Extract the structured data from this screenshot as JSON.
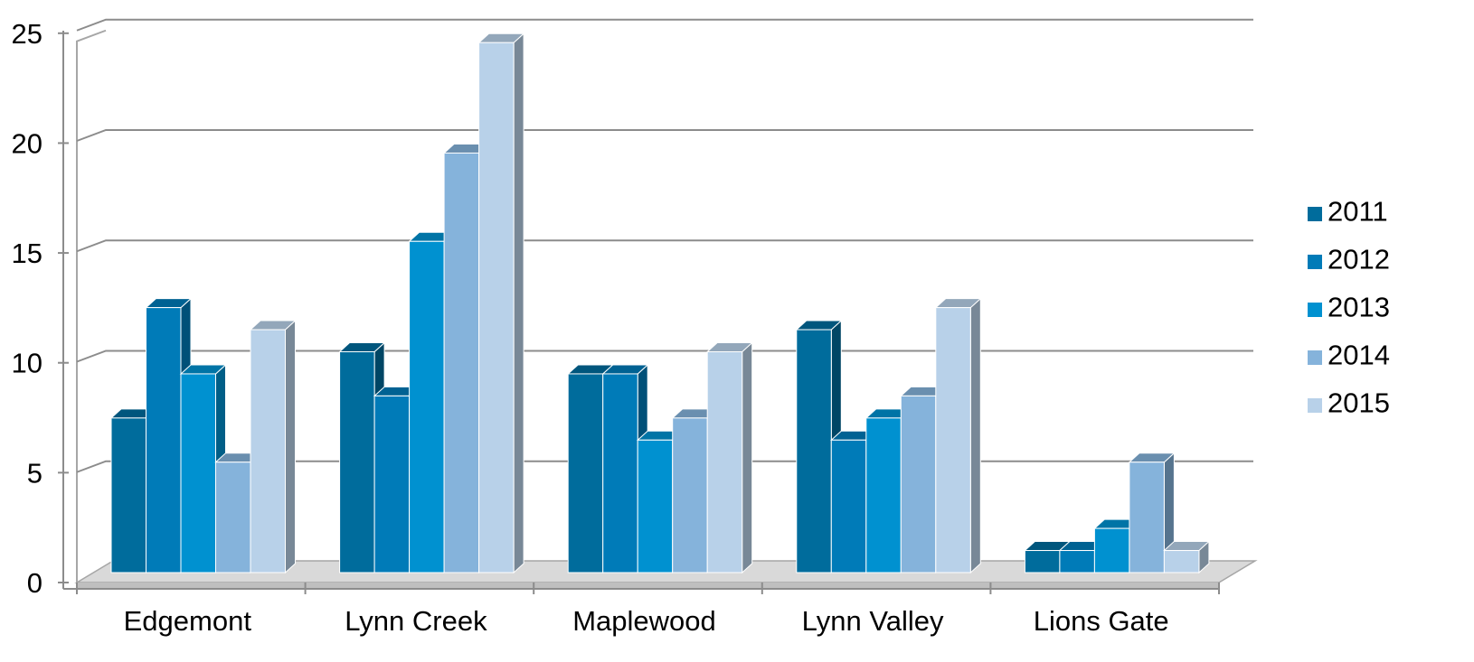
{
  "chart_data": {
    "type": "bar",
    "categories": [
      "Edgemont",
      "Lynn Creek",
      "Maplewood",
      "Lynn Valley",
      "Lions Gate"
    ],
    "series": [
      {
        "name": "2011",
        "values": [
          7,
          10,
          9,
          11,
          1
        ],
        "color": "#006c9c"
      },
      {
        "name": "2012",
        "values": [
          12,
          8,
          9,
          6,
          1
        ],
        "color": "#007bb8"
      },
      {
        "name": "2013",
        "values": [
          9,
          15,
          6,
          7,
          2
        ],
        "color": "#0091d0"
      },
      {
        "name": "2014",
        "values": [
          5,
          19,
          7,
          8,
          5
        ],
        "color": "#85b3db"
      },
      {
        "name": "2015",
        "values": [
          11,
          24,
          10,
          12,
          1
        ],
        "color": "#b8d1e9"
      }
    ],
    "yticks": [
      "0",
      "5",
      "10",
      "15",
      "20",
      "25"
    ],
    "ylim": [
      0,
      25
    ],
    "title": "",
    "xlabel": "",
    "ylabel": "",
    "grid": true,
    "legend_position": "right",
    "three_d": true
  }
}
